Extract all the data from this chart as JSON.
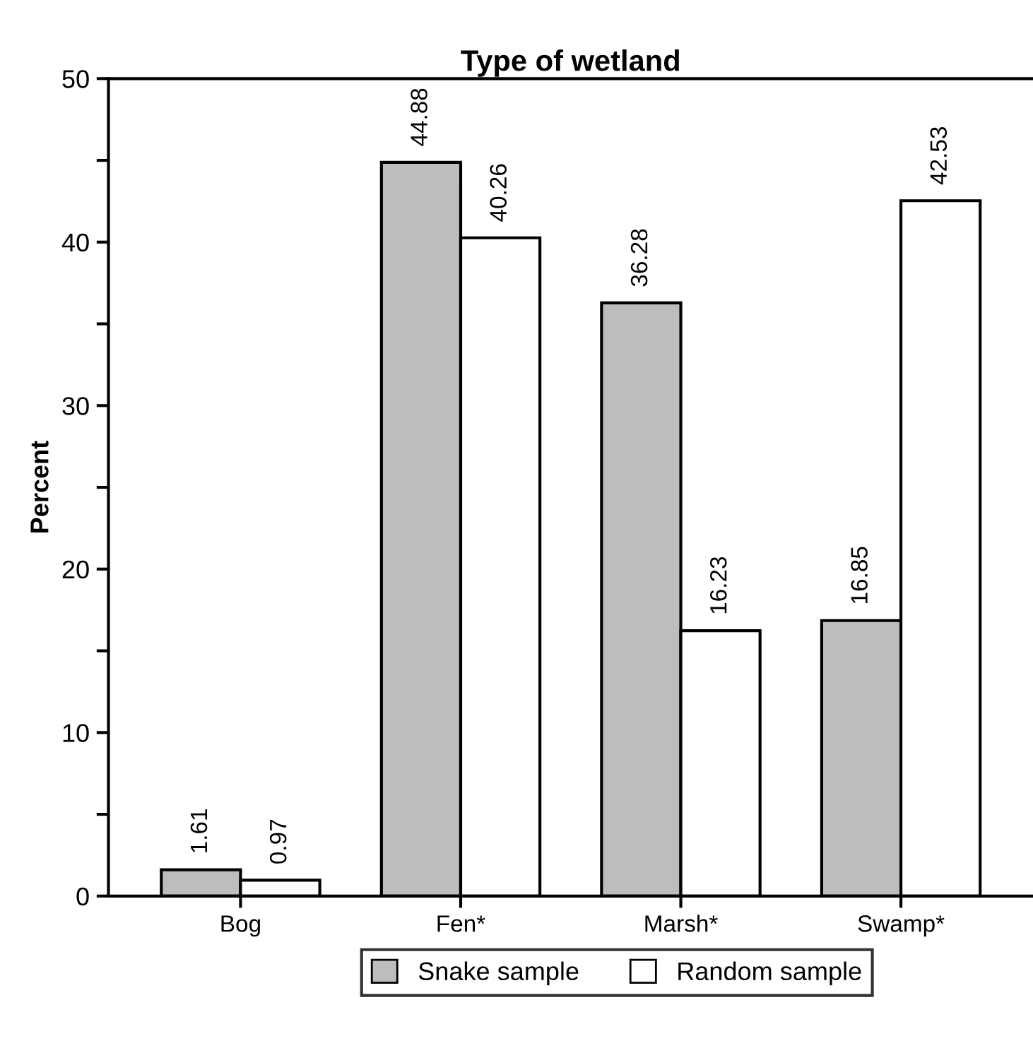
{
  "chart_data": {
    "type": "bar",
    "title": "Type of wetland",
    "ylabel": "Percent",
    "categories": [
      "Bog",
      "Fen*",
      "Marsh*",
      "Swamp*"
    ],
    "series": [
      {
        "name": "Snake sample",
        "color": "#bdbdbd",
        "values": [
          1.61,
          44.88,
          36.28,
          16.85
        ]
      },
      {
        "name": "Random sample",
        "color": "#ffffff",
        "values": [
          0.97,
          40.26,
          16.23,
          42.53
        ]
      }
    ],
    "ylim": [
      0,
      50
    ],
    "yticks": [
      0,
      {
        "value": 5,
        "label": null
      },
      10,
      {
        "value": 15,
        "label": null
      },
      20,
      {
        "value": 25,
        "label": null
      },
      30,
      {
        "value": 35,
        "label": null
      },
      40,
      {
        "value": 45,
        "label": null
      },
      50
    ],
    "data_labels": true,
    "grid": false,
    "legend": "bottom"
  }
}
